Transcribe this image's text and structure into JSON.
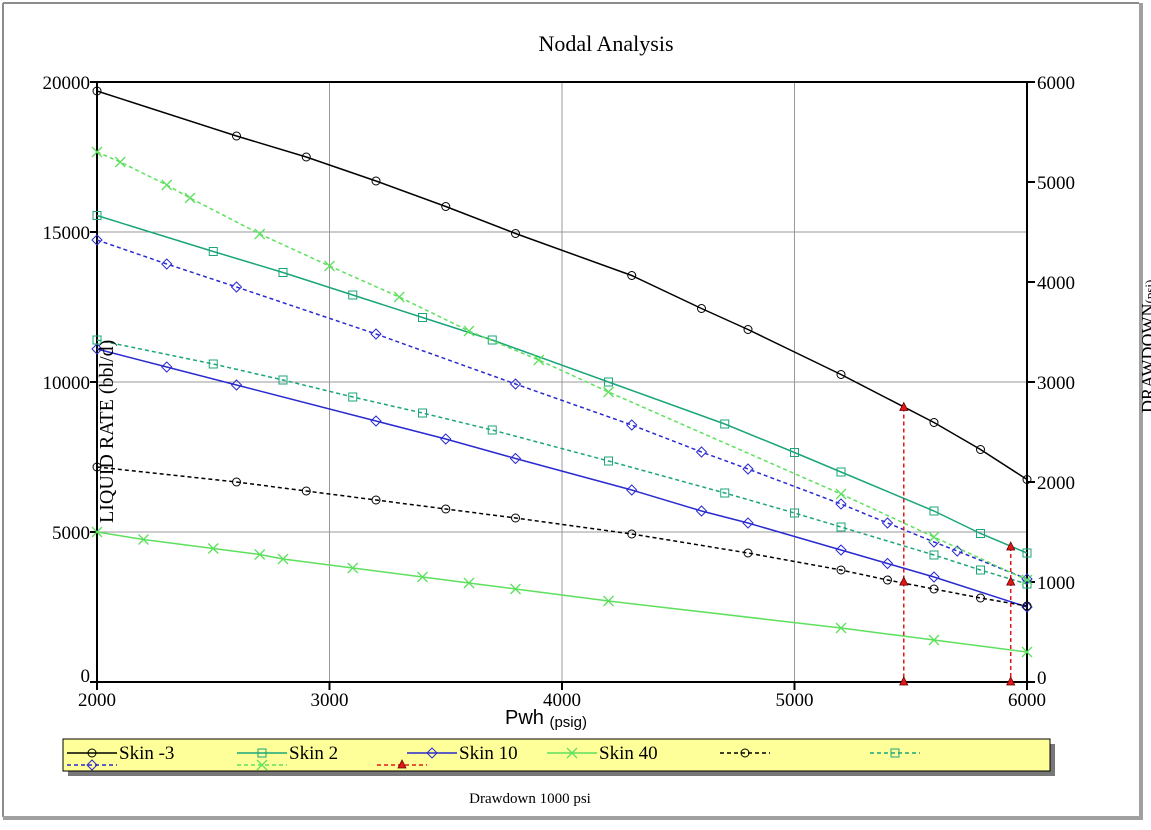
{
  "chart_data": {
    "type": "line",
    "title": "Nodal Analysis",
    "xlabel": "Pwh",
    "xlabel_unit": "(psig)",
    "ylabel": "LIQUID RATE",
    "ylabel_unit": "(bbl/d)",
    "y2label": "DRAWDOWN",
    "y2label_unit": "(psi)",
    "xlim": [
      2000,
      6000
    ],
    "ylim": [
      0,
      20000
    ],
    "y2lim": [
      0,
      6000
    ],
    "xticks": [
      "2000",
      "3000",
      "4000",
      "5000",
      "6000"
    ],
    "yticks": [
      "0",
      "5000",
      "10000",
      "15000",
      "20000"
    ],
    "y2ticks": [
      "0",
      "1000",
      "2000",
      "3000",
      "4000",
      "5000",
      "6000"
    ],
    "grid": true,
    "footnote": "Drawdown 1000 psi",
    "series": [
      {
        "name": "Skin -3",
        "axis": "left",
        "color": "#000000",
        "dash": false,
        "marker": "circle",
        "x": [
          2000,
          2600,
          2900,
          3200,
          3500,
          3800,
          4300,
          4600,
          4800,
          5200,
          5600,
          5800,
          6000
        ],
        "y": [
          19700,
          18200,
          17500,
          16700,
          15850,
          14950,
          13550,
          12450,
          11750,
          10250,
          8650,
          7750,
          6750
        ]
      },
      {
        "name": "Skin 2",
        "axis": "left",
        "color": "#1aa57a",
        "dash": false,
        "marker": "square",
        "x": [
          2000,
          2500,
          2800,
          3100,
          3400,
          3700,
          4200,
          4700,
          5000,
          5200,
          5600,
          5800,
          6000
        ],
        "y": [
          15550,
          14350,
          13650,
          12900,
          12150,
          11400,
          10000,
          8600,
          7650,
          7000,
          5700,
          4950,
          4300
        ]
      },
      {
        "name": "Skin 10",
        "axis": "left",
        "color": "#2a2ad0",
        "dash": false,
        "marker": "diamond",
        "x": [
          2000,
          2300,
          2600,
          3200,
          3500,
          3800,
          4300,
          4600,
          4800,
          5200,
          5400,
          5600,
          6000
        ],
        "y": [
          11100,
          10500,
          9900,
          8700,
          8100,
          7450,
          6400,
          5700,
          5300,
          4400,
          3950,
          3500,
          2500
        ]
      },
      {
        "name": "Skin 40",
        "axis": "left",
        "color": "#5de05d",
        "dash": false,
        "marker": "x",
        "x": [
          2000,
          2200,
          2500,
          2700,
          2800,
          3100,
          3400,
          3600,
          3800,
          4200,
          5200,
          5600,
          6000
        ],
        "y": [
          5000,
          4750,
          4450,
          4250,
          4100,
          3800,
          3500,
          3300,
          3100,
          2700,
          1800,
          1400,
          1000
        ]
      },
      {
        "name": "",
        "axis": "right",
        "color": "#000000",
        "dash": true,
        "marker": "circle",
        "x": [
          2000,
          2600,
          2900,
          3200,
          3500,
          3800,
          4300,
          4800,
          5200,
          5400,
          5600,
          5800,
          6000
        ],
        "y": [
          2150,
          2000,
          1910,
          1820,
          1730,
          1640,
          1480,
          1290,
          1120,
          1020,
          930,
          840,
          760
        ]
      },
      {
        "name": "",
        "axis": "right",
        "color": "#1aa57a",
        "dash": true,
        "marker": "square",
        "x": [
          2000,
          2500,
          2800,
          3100,
          3400,
          3700,
          4200,
          4700,
          5000,
          5200,
          5600,
          5800,
          6000
        ],
        "y": [
          3420,
          3180,
          3020,
          2850,
          2690,
          2520,
          2210,
          1890,
          1690,
          1550,
          1270,
          1120,
          980
        ]
      },
      {
        "name": "",
        "axis": "right",
        "color": "#2a2ad0",
        "dash": true,
        "marker": "diamond",
        "x": [
          2000,
          2300,
          2600,
          3200,
          3800,
          4300,
          4600,
          4800,
          5200,
          5400,
          5600,
          5700,
          6000
        ],
        "y": [
          4420,
          4180,
          3950,
          3480,
          2980,
          2570,
          2300,
          2130,
          1780,
          1590,
          1400,
          1310,
          1030
        ]
      },
      {
        "name": "",
        "axis": "right",
        "color": "#5de05d",
        "dash": true,
        "marker": "x",
        "x": [
          2000,
          2100,
          2300,
          2400,
          2700,
          3000,
          3300,
          3600,
          3900,
          4200,
          5200,
          5600,
          6000
        ],
        "y": [
          5300,
          5200,
          4970,
          4840,
          4480,
          4160,
          3850,
          3510,
          3220,
          2900,
          1880,
          1450,
          1020
        ]
      },
      {
        "name": "",
        "axis": "left",
        "color": "#e01818",
        "dash": true,
        "marker": "triangle",
        "kind": "drawdown-marker",
        "points": [
          {
            "x": 5470,
            "y_top": 9150,
            "y_mid": 3330,
            "y_bottom": 0
          },
          {
            "x": 5930,
            "y_top": 4500,
            "y_mid": 3330,
            "y_bottom": 0
          }
        ]
      }
    ]
  }
}
